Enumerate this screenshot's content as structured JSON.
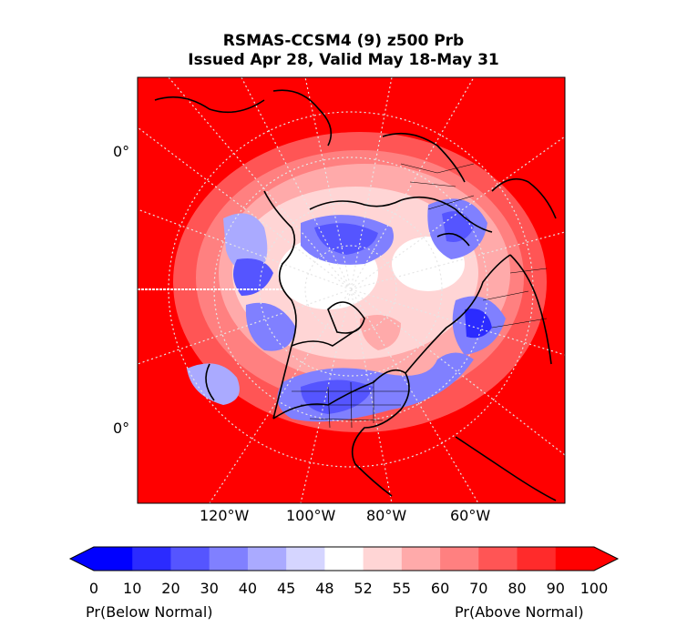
{
  "title": {
    "line1": "RSMAS-CCSM4 (9) z500 Prb",
    "line2": "Issued Apr 28, Valid May 18-May 31"
  },
  "map": {
    "projection": "polar stereographic (north pole)",
    "variable": "z500 probability",
    "lat_labels": [
      "0°",
      "0°"
    ],
    "lon_labels": [
      "120°W",
      "100°W",
      "80°W",
      "60°W"
    ],
    "fill_colors": {
      "background_red": "#ff0000",
      "coast_line": "#000000",
      "grid_line": "#dcdcdc"
    }
  },
  "colorbar": {
    "ticks": [
      "0",
      "10",
      "20",
      "30",
      "40",
      "45",
      "48",
      "52",
      "55",
      "60",
      "70",
      "80",
      "90",
      "100"
    ],
    "colors": [
      "#0000ff",
      "#2b2bff",
      "#5555ff",
      "#8080ff",
      "#aaaaff",
      "#d5d5ff",
      "#ffffff",
      "#ffd5d5",
      "#ffaaaa",
      "#ff8080",
      "#ff5555",
      "#ff2b2b",
      "#ff0000"
    ],
    "extend_low_color": "#0000ff",
    "extend_high_color": "#ff0000",
    "label_left": "Pr(Below Normal)",
    "label_right": "Pr(Above Normal)"
  }
}
